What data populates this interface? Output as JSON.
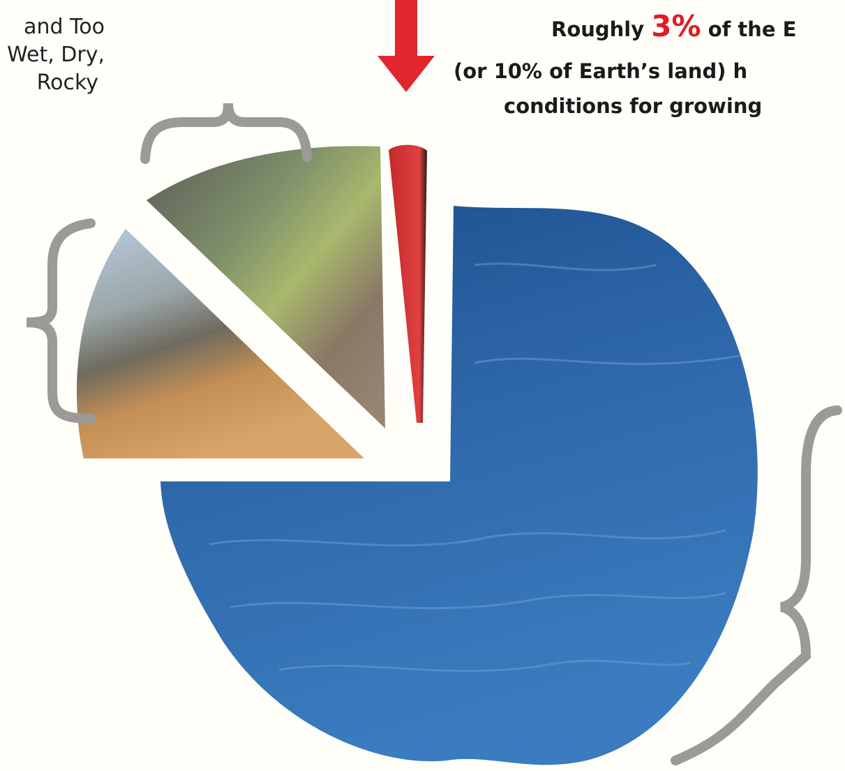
{
  "left_label": {
    "lines": [
      "and Too",
      "Wet, Dry,",
      "Rocky"
    ]
  },
  "right_label": {
    "line1": {
      "before": "Roughly",
      "highlight": "3%",
      "after": "of the E"
    },
    "line2": "(or 10% of Earth’s land) h",
    "line3": "conditions for growing"
  }
}
